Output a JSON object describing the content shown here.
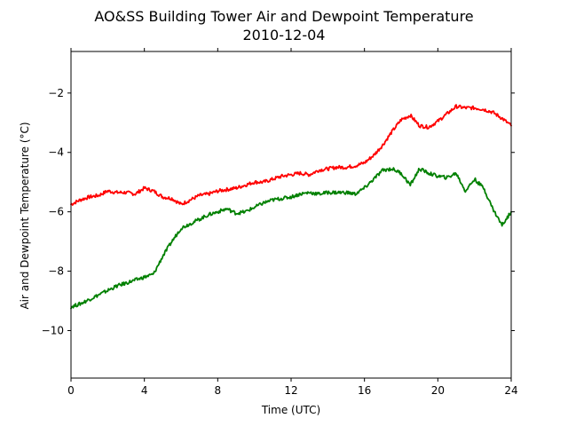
{
  "chart_data": {
    "type": "line",
    "title": "AO&SS Building Tower Air and Dewpoint Temperature",
    "subtitle": "2010-12-04",
    "xlabel": "Time (UTC)",
    "ylabel": "Air and Dewpoint Temperature (°C)",
    "xlim": [
      0,
      24
    ],
    "ylim": [
      -11.6,
      -0.6
    ],
    "xticks": [
      0,
      4,
      8,
      12,
      16,
      20,
      24
    ],
    "yticks": [
      -10,
      -8,
      -6,
      -4,
      -2
    ],
    "grid": false,
    "legend": "none",
    "series": [
      {
        "color": "#ff0000",
        "x": [
          0,
          0.5,
          1,
          1.5,
          2,
          2.5,
          3,
          3.5,
          4,
          4.5,
          5,
          5.5,
          6,
          6.5,
          7,
          7.5,
          8,
          8.5,
          9,
          9.5,
          10,
          10.5,
          11,
          11.5,
          12,
          12.5,
          13,
          13.5,
          14,
          14.5,
          15,
          15.5,
          16,
          16.5,
          17,
          17.5,
          18,
          18.5,
          19,
          19.5,
          20,
          20.5,
          21,
          21.5,
          22,
          22.5,
          23,
          23.5,
          24
        ],
        "y": [
          -5.75,
          -5.6,
          -5.5,
          -5.45,
          -5.3,
          -5.35,
          -5.35,
          -5.4,
          -5.2,
          -5.3,
          -5.5,
          -5.55,
          -5.75,
          -5.6,
          -5.45,
          -5.4,
          -5.3,
          -5.25,
          -5.2,
          -5.1,
          -5.0,
          -5.0,
          -4.9,
          -4.8,
          -4.75,
          -4.7,
          -4.75,
          -4.6,
          -4.55,
          -4.5,
          -4.5,
          -4.45,
          -4.35,
          -4.1,
          -3.75,
          -3.3,
          -2.9,
          -2.75,
          -3.1,
          -3.15,
          -2.95,
          -2.7,
          -2.45,
          -2.5,
          -2.5,
          -2.55,
          -2.65,
          -2.85,
          -3.1
        ]
      },
      {
        "color": "#008000",
        "x": [
          0,
          0.5,
          1,
          1.5,
          2,
          2.5,
          3,
          3.5,
          4,
          4.5,
          5,
          5.5,
          6,
          6.5,
          7,
          7.5,
          8,
          8.5,
          9,
          9.5,
          10,
          10.5,
          11,
          11.5,
          12,
          12.5,
          13,
          13.5,
          14,
          14.5,
          15,
          15.5,
          16,
          16.5,
          17,
          17.5,
          18,
          18.5,
          19,
          19.5,
          20,
          20.5,
          21,
          21.5,
          22,
          22.5,
          23,
          23.5,
          24
        ],
        "y": [
          -9.2,
          -9.1,
          -8.95,
          -8.8,
          -8.65,
          -8.5,
          -8.4,
          -8.3,
          -8.2,
          -8.1,
          -7.5,
          -7.0,
          -6.55,
          -6.4,
          -6.25,
          -6.1,
          -6.0,
          -5.9,
          -6.05,
          -6.0,
          -5.85,
          -5.7,
          -5.6,
          -5.55,
          -5.5,
          -5.4,
          -5.35,
          -5.4,
          -5.35,
          -5.35,
          -5.35,
          -5.4,
          -5.2,
          -4.9,
          -4.6,
          -4.55,
          -4.7,
          -5.1,
          -4.55,
          -4.7,
          -4.8,
          -4.85,
          -4.7,
          -5.3,
          -4.9,
          -5.2,
          -5.9,
          -6.45,
          -6.0
        ]
      }
    ]
  }
}
